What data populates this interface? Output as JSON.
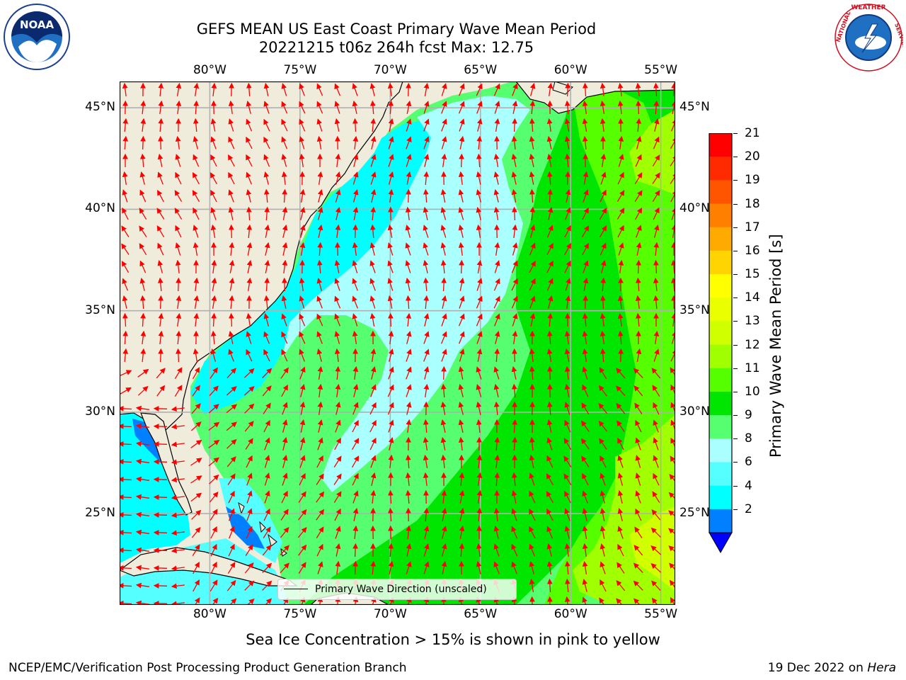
{
  "title": {
    "line1": "GEFS MEAN US East Coast Primary Wave Mean Period",
    "line2": "20221215 t06z 264h fcst   Max: 12.75"
  },
  "logos": {
    "left": "noaa-logo",
    "left_text": "NOAA",
    "right": "national-weather-service-logo",
    "right_text": "NATIONAL WEATHER SERVICE"
  },
  "map": {
    "lon_labels": [
      "80°W",
      "75°W",
      "70°W",
      "65°W",
      "60°W",
      "55°W"
    ],
    "lat_labels": [
      "45°N",
      "40°N",
      "35°N",
      "30°N",
      "25°N"
    ],
    "lon_values": [
      -80,
      -75,
      -70,
      -65,
      -60,
      -55
    ],
    "lat_values": [
      45,
      40,
      35,
      30,
      25
    ],
    "lon_range": [
      -85,
      -54.2
    ],
    "lat_range": [
      20.5,
      46.3
    ],
    "land_color": "#efecdc",
    "arrow_color": "#ff0000",
    "grid_color": "#b0b0b0"
  },
  "legend": {
    "label": "Primary Wave Direction (unscaled)"
  },
  "colorbar": {
    "label": "Primary Wave Mean Period [s]",
    "ticks": [
      "21",
      "20",
      "19",
      "18",
      "17",
      "16",
      "15",
      "14",
      "13",
      "12",
      "11",
      "10",
      "9",
      "8",
      "6",
      "4",
      "2"
    ],
    "colors": [
      "#ff0000",
      "#ff2a00",
      "#ff5500",
      "#ff8000",
      "#ffaa00",
      "#ffd400",
      "#ffff00",
      "#eaff00",
      "#d0ff00",
      "#a0ff00",
      "#55ff00",
      "#00e600",
      "#55ff70",
      "#aaffff",
      "#55ffff",
      "#00ffff",
      "#0080ff"
    ],
    "extend_color": "#0000ff"
  },
  "footer": {
    "ice_note": "Sea Ice Concentration > 15% is shown in pink to yellow",
    "credit": "NCEP/EMC/Verification Post Processing Product Generation Branch",
    "date": "19 Dec 2022 on",
    "host": "Hera"
  }
}
